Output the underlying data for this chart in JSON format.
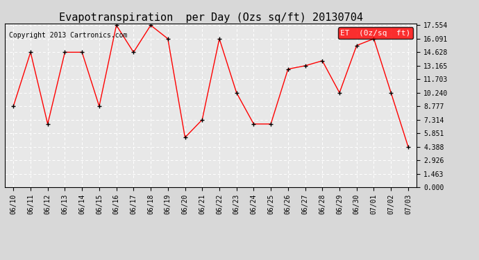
{
  "title": "Evapotranspiration  per Day (Ozs sq/ft) 20130704",
  "copyright": "Copyright 2013 Cartronics.com",
  "legend_label": "ET  (0z/sq  ft)",
  "x_labels": [
    "06/10",
    "06/11",
    "06/12",
    "06/13",
    "06/14",
    "06/15",
    "06/16",
    "06/17",
    "06/18",
    "06/19",
    "06/20",
    "06/21",
    "06/22",
    "06/23",
    "06/24",
    "06/25",
    "06/26",
    "06/27",
    "06/28",
    "06/29",
    "06/30",
    "07/01",
    "07/02",
    "07/03"
  ],
  "y_values": [
    8.777,
    14.628,
    6.851,
    14.628,
    14.628,
    8.777,
    17.554,
    14.628,
    17.554,
    16.091,
    5.388,
    7.314,
    16.091,
    10.24,
    6.851,
    6.851,
    12.802,
    13.165,
    13.703,
    10.24,
    15.36,
    16.091,
    10.24,
    4.388
  ],
  "y_ticks": [
    0.0,
    1.463,
    2.926,
    4.388,
    5.851,
    7.314,
    8.777,
    10.24,
    11.703,
    13.165,
    14.628,
    16.091,
    17.554
  ],
  "y_min": 0.0,
  "y_max": 17.554,
  "line_color": "red",
  "marker": "+",
  "marker_color": "black",
  "bg_color": "#d8d8d8",
  "plot_bg_color": "#e8e8e8",
  "grid_color": "white",
  "legend_bg": "red",
  "legend_text_color": "white",
  "title_fontsize": 11,
  "copyright_fontsize": 7,
  "tick_fontsize": 7,
  "legend_fontsize": 8
}
